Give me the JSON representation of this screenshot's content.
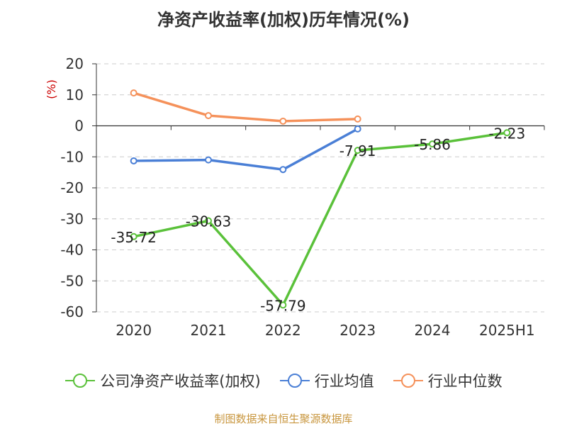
{
  "chart_data": {
    "type": "line",
    "title": "净资产收益率(加权)历年情况(%)",
    "ylabel": "(%)",
    "categories": [
      "2020",
      "2021",
      "2022",
      "2023",
      "2024",
      "2025H1"
    ],
    "ylim": [
      -60,
      20
    ],
    "yticks": [
      20,
      10,
      0,
      -10,
      -20,
      -30,
      -40,
      -50,
      -60
    ],
    "grid": true,
    "legend_position": "bottom",
    "series": [
      {
        "name": "公司净资产收益率(加权)",
        "color": "#5ac13a",
        "values": [
          -35.72,
          -30.63,
          -57.79,
          -7.91,
          -5.86,
          -2.23
        ],
        "labels": [
          "-35.72",
          "-30.63",
          "-57.79",
          "-7.91",
          "-5.86",
          "-2.23"
        ]
      },
      {
        "name": "行业均值",
        "color": "#4a7fd6",
        "values": [
          -11.3,
          -11.0,
          -14.1,
          -1.0,
          null,
          null
        ]
      },
      {
        "name": "行业中位数",
        "color": "#f5915a",
        "values": [
          10.6,
          3.3,
          1.5,
          2.2,
          null,
          null
        ]
      }
    ]
  },
  "source": "制图数据来自恒生聚源数据库"
}
